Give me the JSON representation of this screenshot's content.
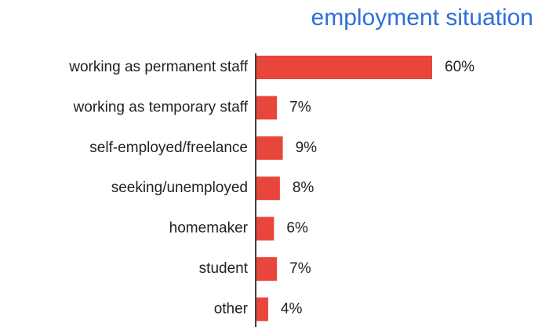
{
  "chart_data": {
    "type": "bar",
    "orientation": "horizontal",
    "title": "employment situation",
    "categories": [
      "working as permanent staff",
      "working as temporary staff",
      "self-employed/freelance",
      "seeking/unemployed",
      "homemaker",
      "student",
      "other"
    ],
    "values": [
      60,
      7,
      9,
      8,
      6,
      7,
      4
    ],
    "value_labels": [
      "60%",
      "7%",
      "9%",
      "8%",
      "6%",
      "7%",
      "4%"
    ],
    "color": "#e8463a"
  }
}
